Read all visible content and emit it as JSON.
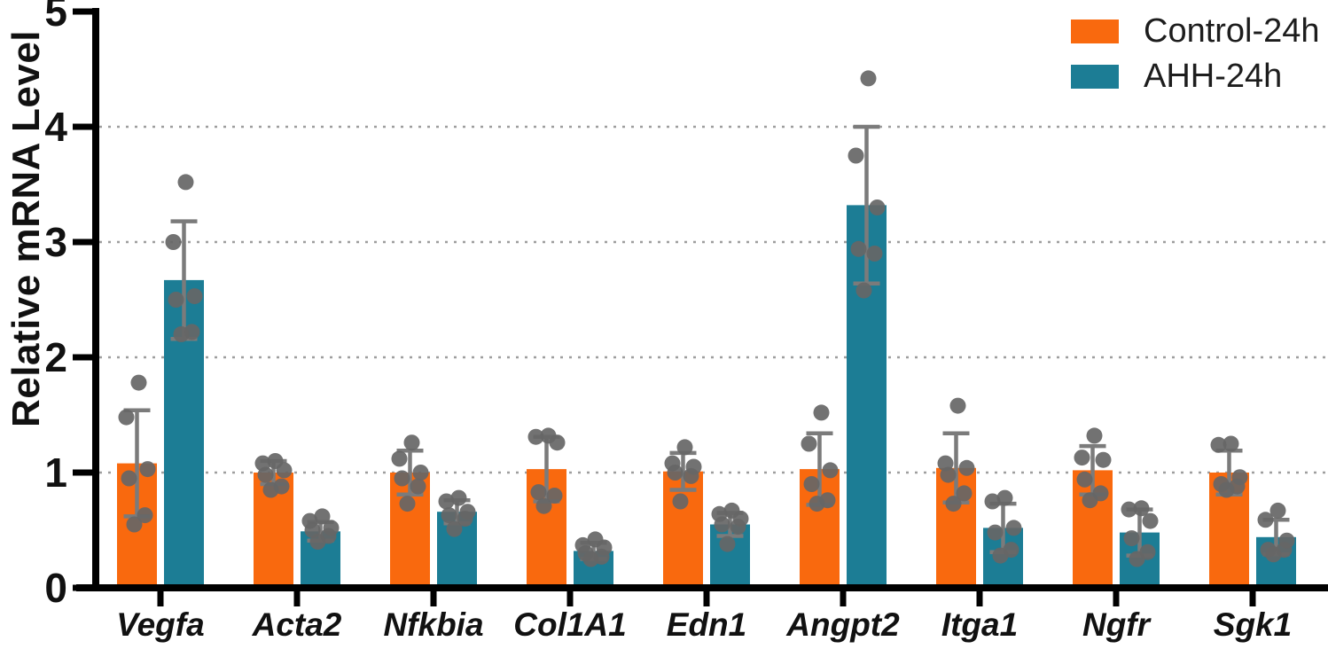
{
  "figure": {
    "background": "#ffffff"
  },
  "chart_data": {
    "type": "bar",
    "title": "",
    "xlabel": "",
    "ylabel": "Relative mRNA Level",
    "ylim": [
      0,
      5
    ],
    "yticks": [
      0,
      1,
      2,
      3,
      4,
      5
    ],
    "gridlines": [
      1,
      2,
      3,
      4
    ],
    "grid_style": "dotted",
    "legend_position": "top-right",
    "error_bar_type": "mean ± SD, with individual replicate points (n=6)",
    "categories": [
      "Vegfa",
      "Acta2",
      "Nfkbia",
      "Col1A1",
      "Edn1",
      "Angpt2",
      "Itga1",
      "Ngfr",
      "Sgk1"
    ],
    "series": [
      {
        "name": "Control-24h",
        "color": "#F9690E",
        "means": [
          1.08,
          1.0,
          1.0,
          1.03,
          1.01,
          1.03,
          1.04,
          1.02,
          1.0
        ],
        "sds": [
          0.46,
          0.1,
          0.19,
          0.28,
          0.16,
          0.31,
          0.3,
          0.21,
          0.19
        ],
        "points": [
          [
            1.78,
            1.48,
            1.03,
            0.95,
            0.63,
            0.55
          ],
          [
            1.1,
            1.08,
            1.02,
            0.98,
            0.88,
            0.85
          ],
          [
            1.26,
            1.12,
            1.0,
            0.95,
            0.88,
            0.73
          ],
          [
            1.32,
            1.31,
            1.26,
            0.83,
            0.8,
            0.71
          ],
          [
            1.22,
            1.08,
            1.05,
            1.0,
            0.97,
            0.75
          ],
          [
            1.52,
            1.25,
            1.02,
            0.9,
            0.76,
            0.73
          ],
          [
            1.58,
            1.08,
            1.04,
            0.98,
            0.82,
            0.73
          ],
          [
            1.32,
            1.13,
            1.11,
            0.94,
            0.82,
            0.76
          ],
          [
            1.25,
            1.24,
            0.96,
            0.9,
            0.88,
            0.85
          ]
        ]
      },
      {
        "name": "AHH-24h",
        "color": "#1C7D95",
        "means": [
          2.67,
          0.49,
          0.66,
          0.32,
          0.55,
          3.32,
          0.52,
          0.48,
          0.44
        ],
        "sds": [
          0.51,
          0.08,
          0.1,
          0.07,
          0.1,
          0.68,
          0.21,
          0.2,
          0.15
        ],
        "points": [
          [
            3.52,
            3.0,
            2.53,
            2.5,
            2.22,
            2.2
          ],
          [
            0.62,
            0.58,
            0.52,
            0.5,
            0.45,
            0.4
          ],
          [
            0.78,
            0.75,
            0.66,
            0.63,
            0.6,
            0.51
          ],
          [
            0.42,
            0.37,
            0.35,
            0.3,
            0.27,
            0.25
          ],
          [
            0.67,
            0.64,
            0.6,
            0.55,
            0.53,
            0.38
          ],
          [
            4.42,
            3.75,
            3.3,
            2.94,
            2.9,
            2.58
          ],
          [
            0.78,
            0.75,
            0.52,
            0.48,
            0.33,
            0.28
          ],
          [
            0.69,
            0.68,
            0.58,
            0.43,
            0.31,
            0.25
          ],
          [
            0.67,
            0.59,
            0.41,
            0.33,
            0.33,
            0.29
          ]
        ]
      }
    ],
    "colors": {
      "axis": "#000000",
      "grid": "#9E9E9E",
      "error_bar": "#7B7B7B",
      "points": "#666666",
      "text": "#111111"
    }
  }
}
